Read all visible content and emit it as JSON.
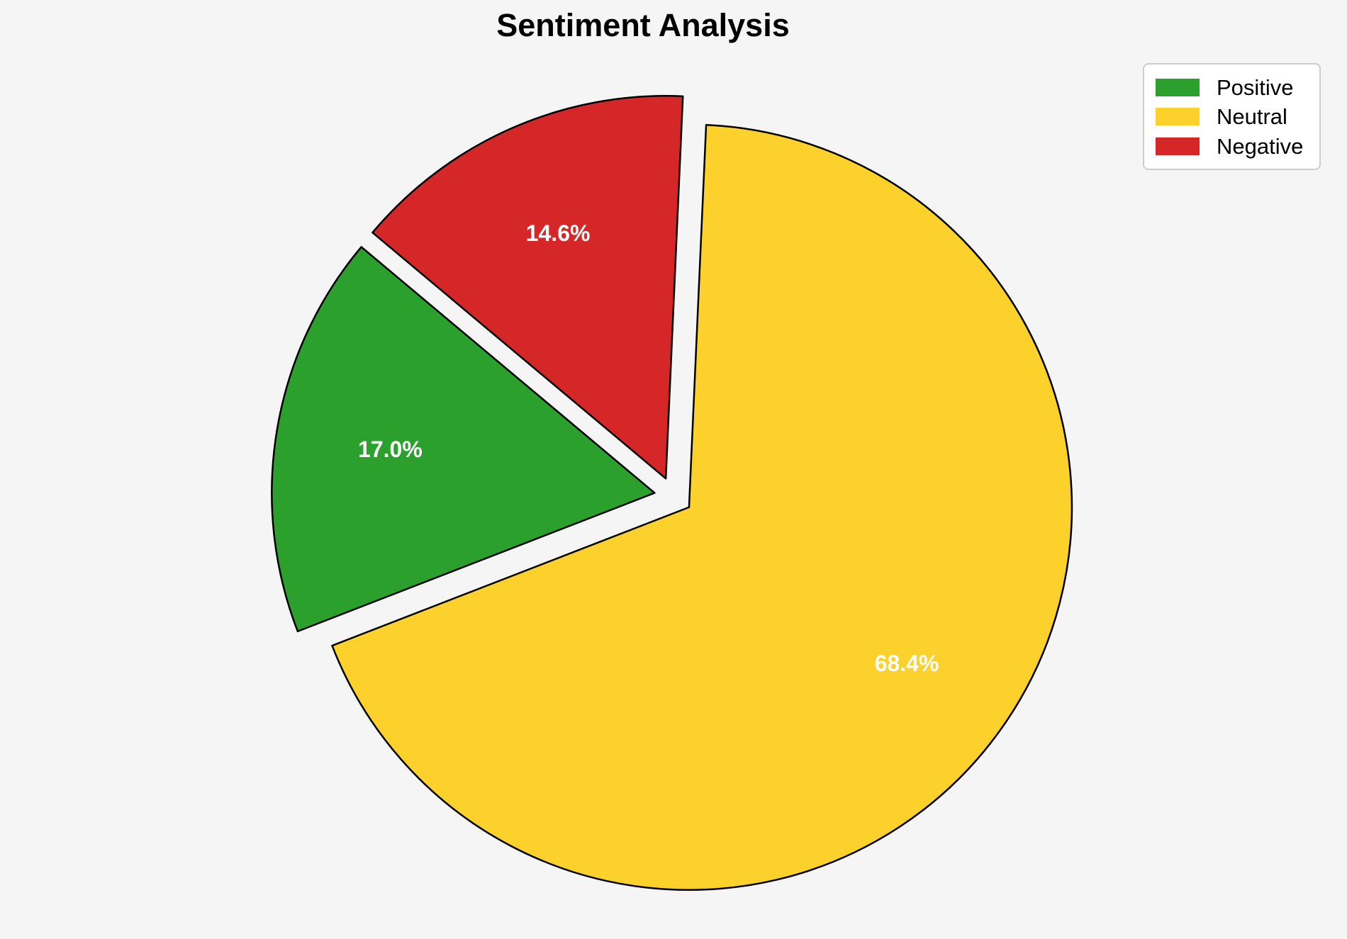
{
  "chart_data": {
    "type": "pie",
    "title": "Sentiment Analysis",
    "labels": [
      "Positive",
      "Neutral",
      "Negative"
    ],
    "values": [
      17.0,
      68.4,
      14.6
    ],
    "pct_labels": [
      "17.0%",
      "68.4%",
      "14.6%"
    ],
    "colors": [
      "#2ca02c",
      "#fcd12b",
      "#d62728"
    ],
    "explode": [
      0.05,
      0.05,
      0.05
    ],
    "start_angle": 140,
    "counterclockwise": true,
    "edge_color": "#000000",
    "pct_label_color": "#ffffff",
    "legend_position": "upper right",
    "background_color": "#f5f5f5"
  }
}
